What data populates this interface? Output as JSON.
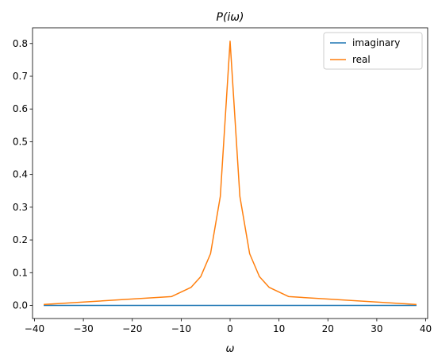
{
  "chart_data": {
    "type": "line",
    "title": "P(iω)",
    "xlabel": "ω",
    "ylabel": "",
    "xlim": [
      -40.4,
      40.4
    ],
    "ylim": [
      -0.04,
      0.848
    ],
    "xticks": [
      -40,
      -30,
      -20,
      -10,
      0,
      10,
      20,
      30,
      40
    ],
    "xtick_labels": [
      "−40",
      "−30",
      "−20",
      "−10",
      "0",
      "10",
      "20",
      "30",
      "40"
    ],
    "yticks": [
      0.0,
      0.1,
      0.2,
      0.3,
      0.4,
      0.5,
      0.6,
      0.7,
      0.8
    ],
    "ytick_labels": [
      "0.0",
      "0.1",
      "0.2",
      "0.3",
      "0.4",
      "0.5",
      "0.6",
      "0.7",
      "0.8"
    ],
    "grid": false,
    "legend_position": "top-right",
    "series": [
      {
        "name": "imaginary",
        "color": "#1f77b4",
        "x": [
          -38,
          38
        ],
        "y": [
          0,
          0
        ]
      },
      {
        "name": "real",
        "color": "#ff7f0e",
        "x": [
          -38,
          -12,
          -8,
          -6,
          -4,
          -2,
          0,
          2,
          4,
          6,
          8,
          12,
          38
        ],
        "y": [
          0.003,
          0.027,
          0.055,
          0.088,
          0.158,
          0.333,
          0.807,
          0.333,
          0.158,
          0.088,
          0.055,
          0.027,
          0.003
        ]
      }
    ]
  }
}
